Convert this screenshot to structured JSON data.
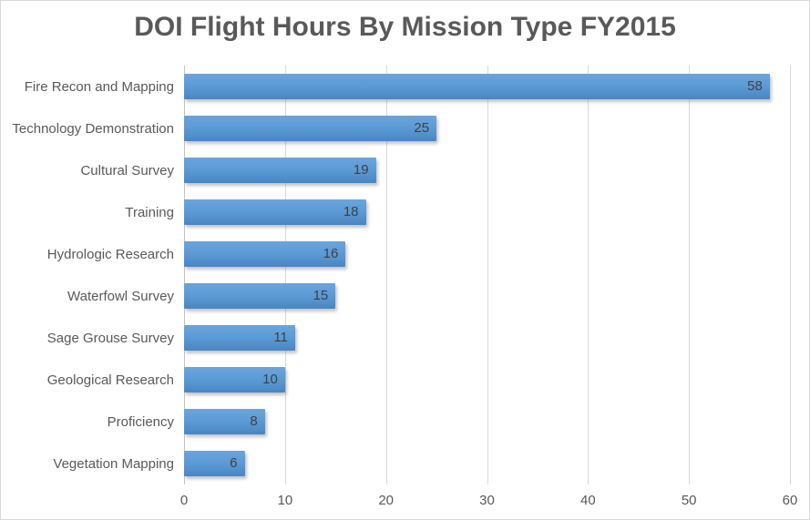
{
  "chart_data": {
    "type": "bar",
    "orientation": "horizontal",
    "title": "DOI Flight Hours By Mission Type FY2015",
    "categories": [
      "Fire Recon and Mapping",
      "Technology Demonstration",
      "Cultural Survey",
      "Training",
      "Hydrologic Research",
      "Waterfowl Survey",
      "Sage Grouse Survey",
      "Geological Research",
      "Proficiency",
      "Vegetation Mapping"
    ],
    "values": [
      58,
      25,
      19,
      18,
      16,
      15,
      11,
      10,
      8,
      6
    ],
    "xlabel": "",
    "ylabel": "",
    "xlim": [
      0,
      60
    ],
    "x_ticks": [
      0,
      10,
      20,
      30,
      40,
      50,
      60
    ],
    "grid": true,
    "legend": false,
    "data_labels_position": "inside-end",
    "colors": {
      "background": "#ffffff",
      "frame_border": "#d9d9d9",
      "bar_top": "#6ba4dd",
      "bar_mid": "#5b9bd5",
      "bar_bottom": "#4a85c2",
      "title_text": "#595959",
      "axis_text": "#595959",
      "value_label_text": "#404040",
      "gridline": "#d9d9d9",
      "axis_line": "#c3c3c3"
    }
  }
}
